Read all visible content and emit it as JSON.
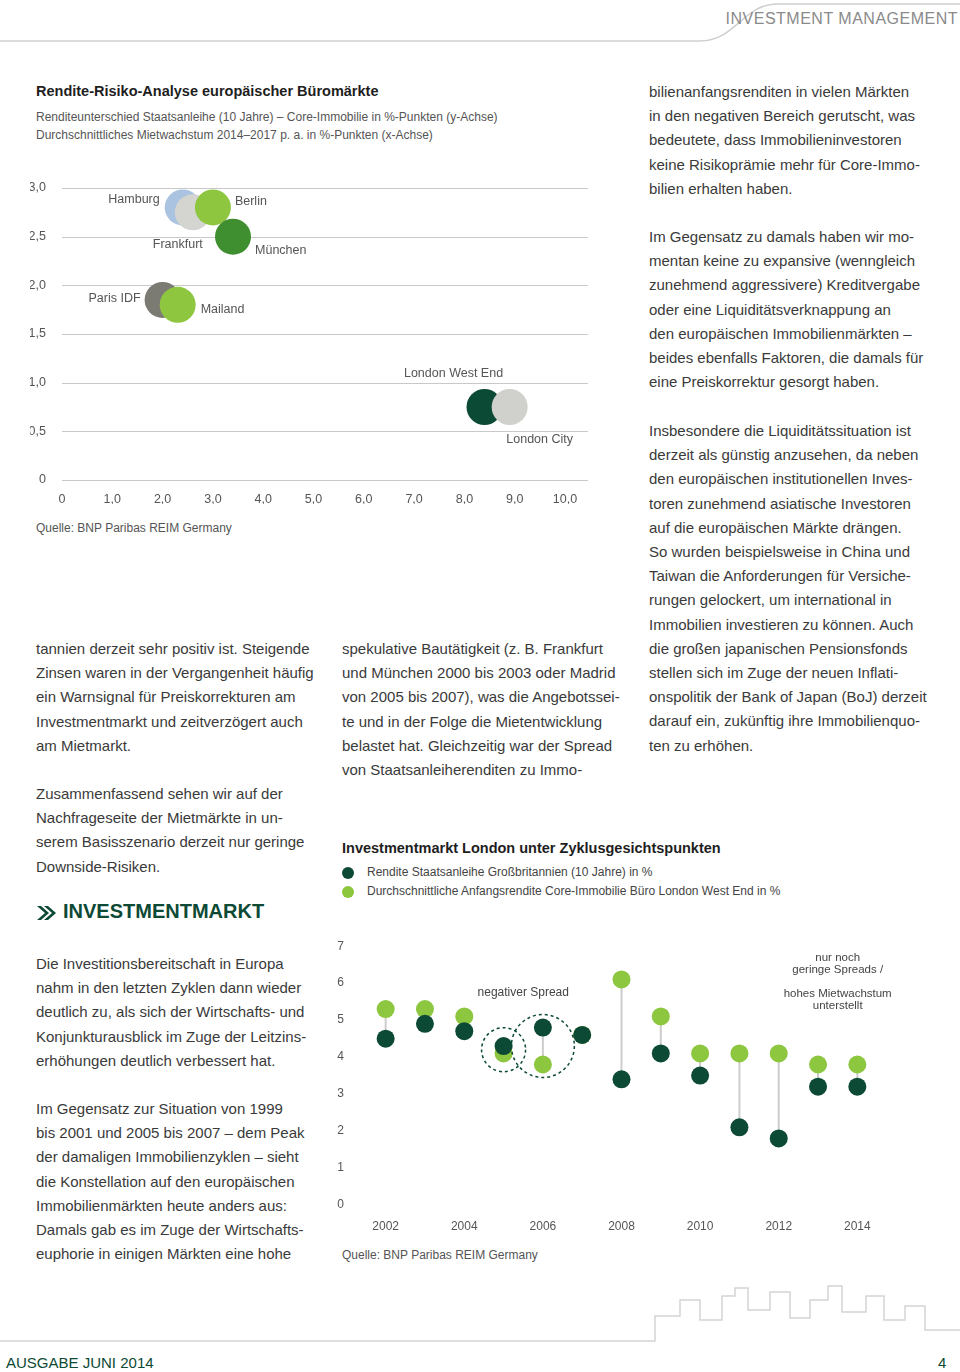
{
  "header": "INVESTMENT MANAGEMENT",
  "chart_data": [
    {
      "type": "scatter",
      "title": "Rendite-Risiko-Analyse europäischer Büromärkte",
      "subtitle": [
        "Renditeunterschied Staatsanleihe (10 Jahre) – Core-Immobilie in %-Punkten (y-Achse)",
        "Durchschnittliches Mietwachstum 2014–2017 p. a. in %-Punkten (x-Achse)"
      ],
      "points": [
        {
          "label": "Hamburg",
          "x": 2.4,
          "y": 2.8,
          "color": "#a9c3e0"
        },
        {
          "label": "Frankfurt",
          "x": 2.6,
          "y": 2.75,
          "color": "#d4d4d1"
        },
        {
          "label": "Berlin",
          "x": 3.0,
          "y": 2.8,
          "color": "#8fc640"
        },
        {
          "label": "München",
          "x": 3.4,
          "y": 2.5,
          "color": "#3f8f30"
        },
        {
          "label": "Paris IDF",
          "x": 2.0,
          "y": 1.85,
          "color": "#7b7b74"
        },
        {
          "label": "Mailand",
          "x": 2.3,
          "y": 1.8,
          "color": "#8fc640"
        },
        {
          "label": "London West End",
          "x": 8.4,
          "y": 0.75,
          "color": "#0b4a34"
        },
        {
          "label": "London City",
          "x": 8.9,
          "y": 0.75,
          "color": "#d0d0cc"
        }
      ],
      "xlim": [
        0,
        10
      ],
      "xticks": [
        0,
        {
          "value": 1,
          "label": "1,0"
        },
        {
          "value": 2,
          "label": "2,0"
        },
        {
          "value": 3,
          "label": "3,0"
        },
        {
          "value": 4,
          "label": "4,0"
        },
        {
          "value": 5,
          "label": "5,0"
        },
        {
          "value": 6,
          "label": "6,0"
        },
        {
          "value": 7,
          "label": "7,0"
        },
        {
          "value": 8,
          "label": "8,0"
        },
        {
          "value": 9,
          "label": "9,0"
        },
        {
          "value": 10,
          "label": "10,0"
        }
      ],
      "ylim": [
        0,
        3
      ],
      "yticks": [
        0,
        {
          "value": 0.5,
          "label": "0,5"
        },
        {
          "value": 1,
          "label": "1,0"
        },
        {
          "value": 1.5,
          "label": "1,5"
        },
        {
          "value": 2,
          "label": "2,0"
        },
        {
          "value": 2.5,
          "label": "2,5"
        },
        {
          "value": 3,
          "label": "3,0"
        }
      ],
      "grid": true,
      "source": "Quelle: BNP Paribas REIM Germany"
    },
    {
      "type": "line",
      "line_style": "none",
      "marker": "circle",
      "title": "Investmentmarkt London unter Zyklusgesichtspunkten",
      "categories": [
        "2002",
        null,
        "2004",
        null,
        "2006",
        null,
        "2008",
        null,
        "2010",
        null,
        "2012",
        null,
        "2014"
      ],
      "series": [
        {
          "name": "Rendite Staatsanleihe Großbritannien (10 Jahre) in %",
          "color": "#0d4a35",
          "values": [
            4.5,
            4.9,
            4.7,
            4.3,
            4.8,
            4.6,
            3.4,
            4.1,
            3.5,
            2.1,
            1.8,
            3.2,
            3.2
          ]
        },
        {
          "name": "Durchschnittliche Anfangsrendite Core-Immobilie Büro London West End in %",
          "color": "#8dc63f",
          "values": [
            5.3,
            5.3,
            5.1,
            4.1,
            3.8,
            4.6,
            6.1,
            5.1,
            4.1,
            4.1,
            4.1,
            3.8,
            3.8
          ]
        }
      ],
      "ylim": [
        0,
        7
      ],
      "yticks": [
        0,
        1,
        2,
        3,
        4,
        5,
        6,
        7
      ],
      "grid": false,
      "legend": "top",
      "annotations": [
        {
          "text": "negativer Spread"
        },
        {
          "lines": [
            "nur noch",
            "geringe Spreads /",
            "hohes Mietwachstum",
            "unterstellt"
          ]
        }
      ],
      "source": "Quelle: BNP Paribas REIM Germany"
    }
  ],
  "text": {
    "right_column": [
      [
        "bilienanfangsrenditen in vielen Märkten",
        "in den negativen Bereich gerutscht, was",
        "bedeutete, dass Immobilieninvestoren",
        "keine Risikoprämie mehr für Core-Immo-",
        "bilien erhalten haben."
      ],
      [
        "Im Gegensatz zu damals haben wir mo-",
        "mentan keine zu expansive (wenngleich",
        "zunehmend aggressivere) Kreditvergabe",
        "oder eine Liquiditätsverknappung an",
        "den europäischen Immobilienmärkten –",
        "beides ebenfalls Faktoren, die damals für",
        "eine Preiskorrektur gesorgt haben."
      ],
      [
        "Insbesondere die Liquiditätssituation ist",
        "derzeit als günstig anzusehen, da neben",
        "den europäischen institutionellen Inves-",
        "toren zunehmend asiatische Investoren",
        "auf die europäischen Märkte drängen.",
        "So wurden beispielsweise in China und",
        "Taiwan die Anforderungen für Versiche-",
        "rungen gelockert, um international in",
        "Immobilien investieren zu können. Auch",
        "die großen japanischen Pensionsfonds",
        "stellen sich im Zuge der neuen Inflati-",
        "onspolitik der Bank of Japan (BoJ) derzeit",
        "darauf ein, zukünftig ihre Immobilienquo-",
        "ten zu erhöhen."
      ]
    ],
    "left_column": [
      [
        "tannien derzeit sehr positiv ist. Steigende",
        "Zinsen waren in der Vergangenheit häufig",
        "ein Warnsignal für Preiskorrekturen am",
        "Investmentmarkt und zeitverzögert auch",
        "am Mietmarkt."
      ],
      [
        "Zusammenfassend sehen wir auf der",
        "Nachfrageseite der Mietmärkte in un-",
        "serem Basisszenario derzeit nur geringe",
        "Downside-Risiken."
      ],
      [
        "Die Investitionsbereitschaft in Europa",
        "nahm in den letzten Zyklen dann wieder",
        "deutlich zu, als sich der Wirtschafts- und",
        "Konjunkturausblick im Zuge der Leitzins-",
        "erhöhungen deutlich verbessert hat."
      ],
      [
        "Im Gegensatz zur Situation von 1999",
        "bis 2001 und 2005 bis 2007 – dem Peak",
        "der damaligen Immobilienzyklen – sieht",
        "die Konstellation auf den europäischen",
        "Immobilienmärkten heute anders aus:",
        "Damals gab es im Zuge der Wirtschafts-",
        "euphorie in einigen Märkten eine hohe"
      ]
    ],
    "section_heading": "INVESTMENTMARKT",
    "middle_column": [
      [
        "spekulative Bautätigkeit (z. B. Frankfurt",
        "und München 2000 bis 2003 oder Madrid",
        "von 2005 bis 2007), was die Angebotssei-",
        "te und in der Folge die Mietentwicklung",
        "belastet hat. Gleichzeitig war der Spread",
        "von Staatsanleiherenditen zu Immo-"
      ]
    ]
  },
  "footer": {
    "issue": "AUSGABE JUNI 2014",
    "page": "4"
  }
}
